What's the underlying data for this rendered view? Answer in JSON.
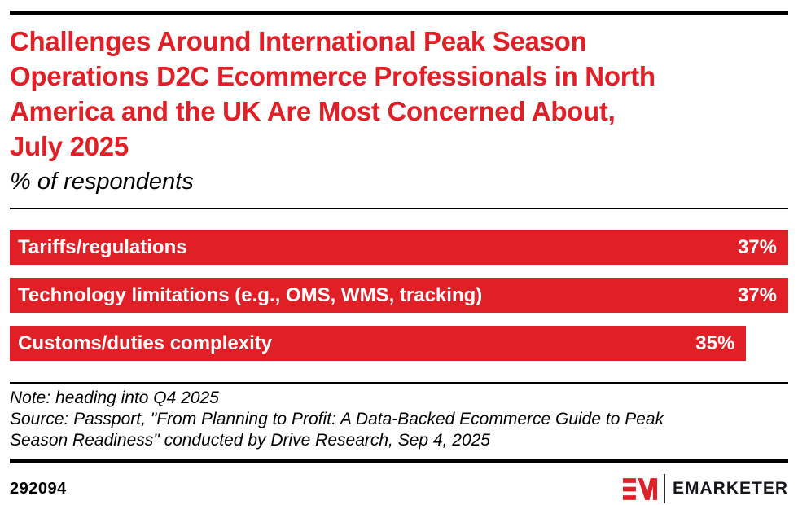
{
  "header": {
    "title_lines": [
      "Challenges Around International Peak Season",
      "Operations D2C Ecommerce Professionals in North",
      "America and the UK Are Most Concerned About,",
      "July 2025"
    ],
    "subtitle": "% of respondents"
  },
  "chart_data": {
    "type": "bar",
    "orientation": "horizontal",
    "title": "Challenges Around International Peak Season Operations D2C Ecommerce Professionals in North America and the UK Are Most Concerned About, July 2025",
    "subtitle": "% of respondents",
    "unit": "%",
    "categories": [
      "Tariffs/regulations",
      "Technology limitations (e.g., OMS, WMS, tracking)",
      "Customs/duties complexity"
    ],
    "values": [
      37,
      37,
      35
    ],
    "value_labels": [
      "37%",
      "37%",
      "35%"
    ],
    "xlim": [
      0,
      37
    ],
    "grid": false,
    "legend": false,
    "bar_color": "#e01f26",
    "bar_label_color": "#ffffff"
  },
  "footer": {
    "note": "Note: heading into Q4 2025",
    "source_lines": [
      "Source: Passport, \"From Planning to Profit: A Data-Backed Ecommerce Guide to Peak",
      "Season Readiness\" conducted by Drive Research, Sep 4, 2025"
    ],
    "chart_id": "292094",
    "brand_name": "EMARKETER",
    "brand_monogram": "EM"
  },
  "colors": {
    "accent_red": "#e01f26",
    "rule_black": "#000000",
    "bar_text_white": "#ffffff",
    "brand_dark": "#16161e"
  }
}
